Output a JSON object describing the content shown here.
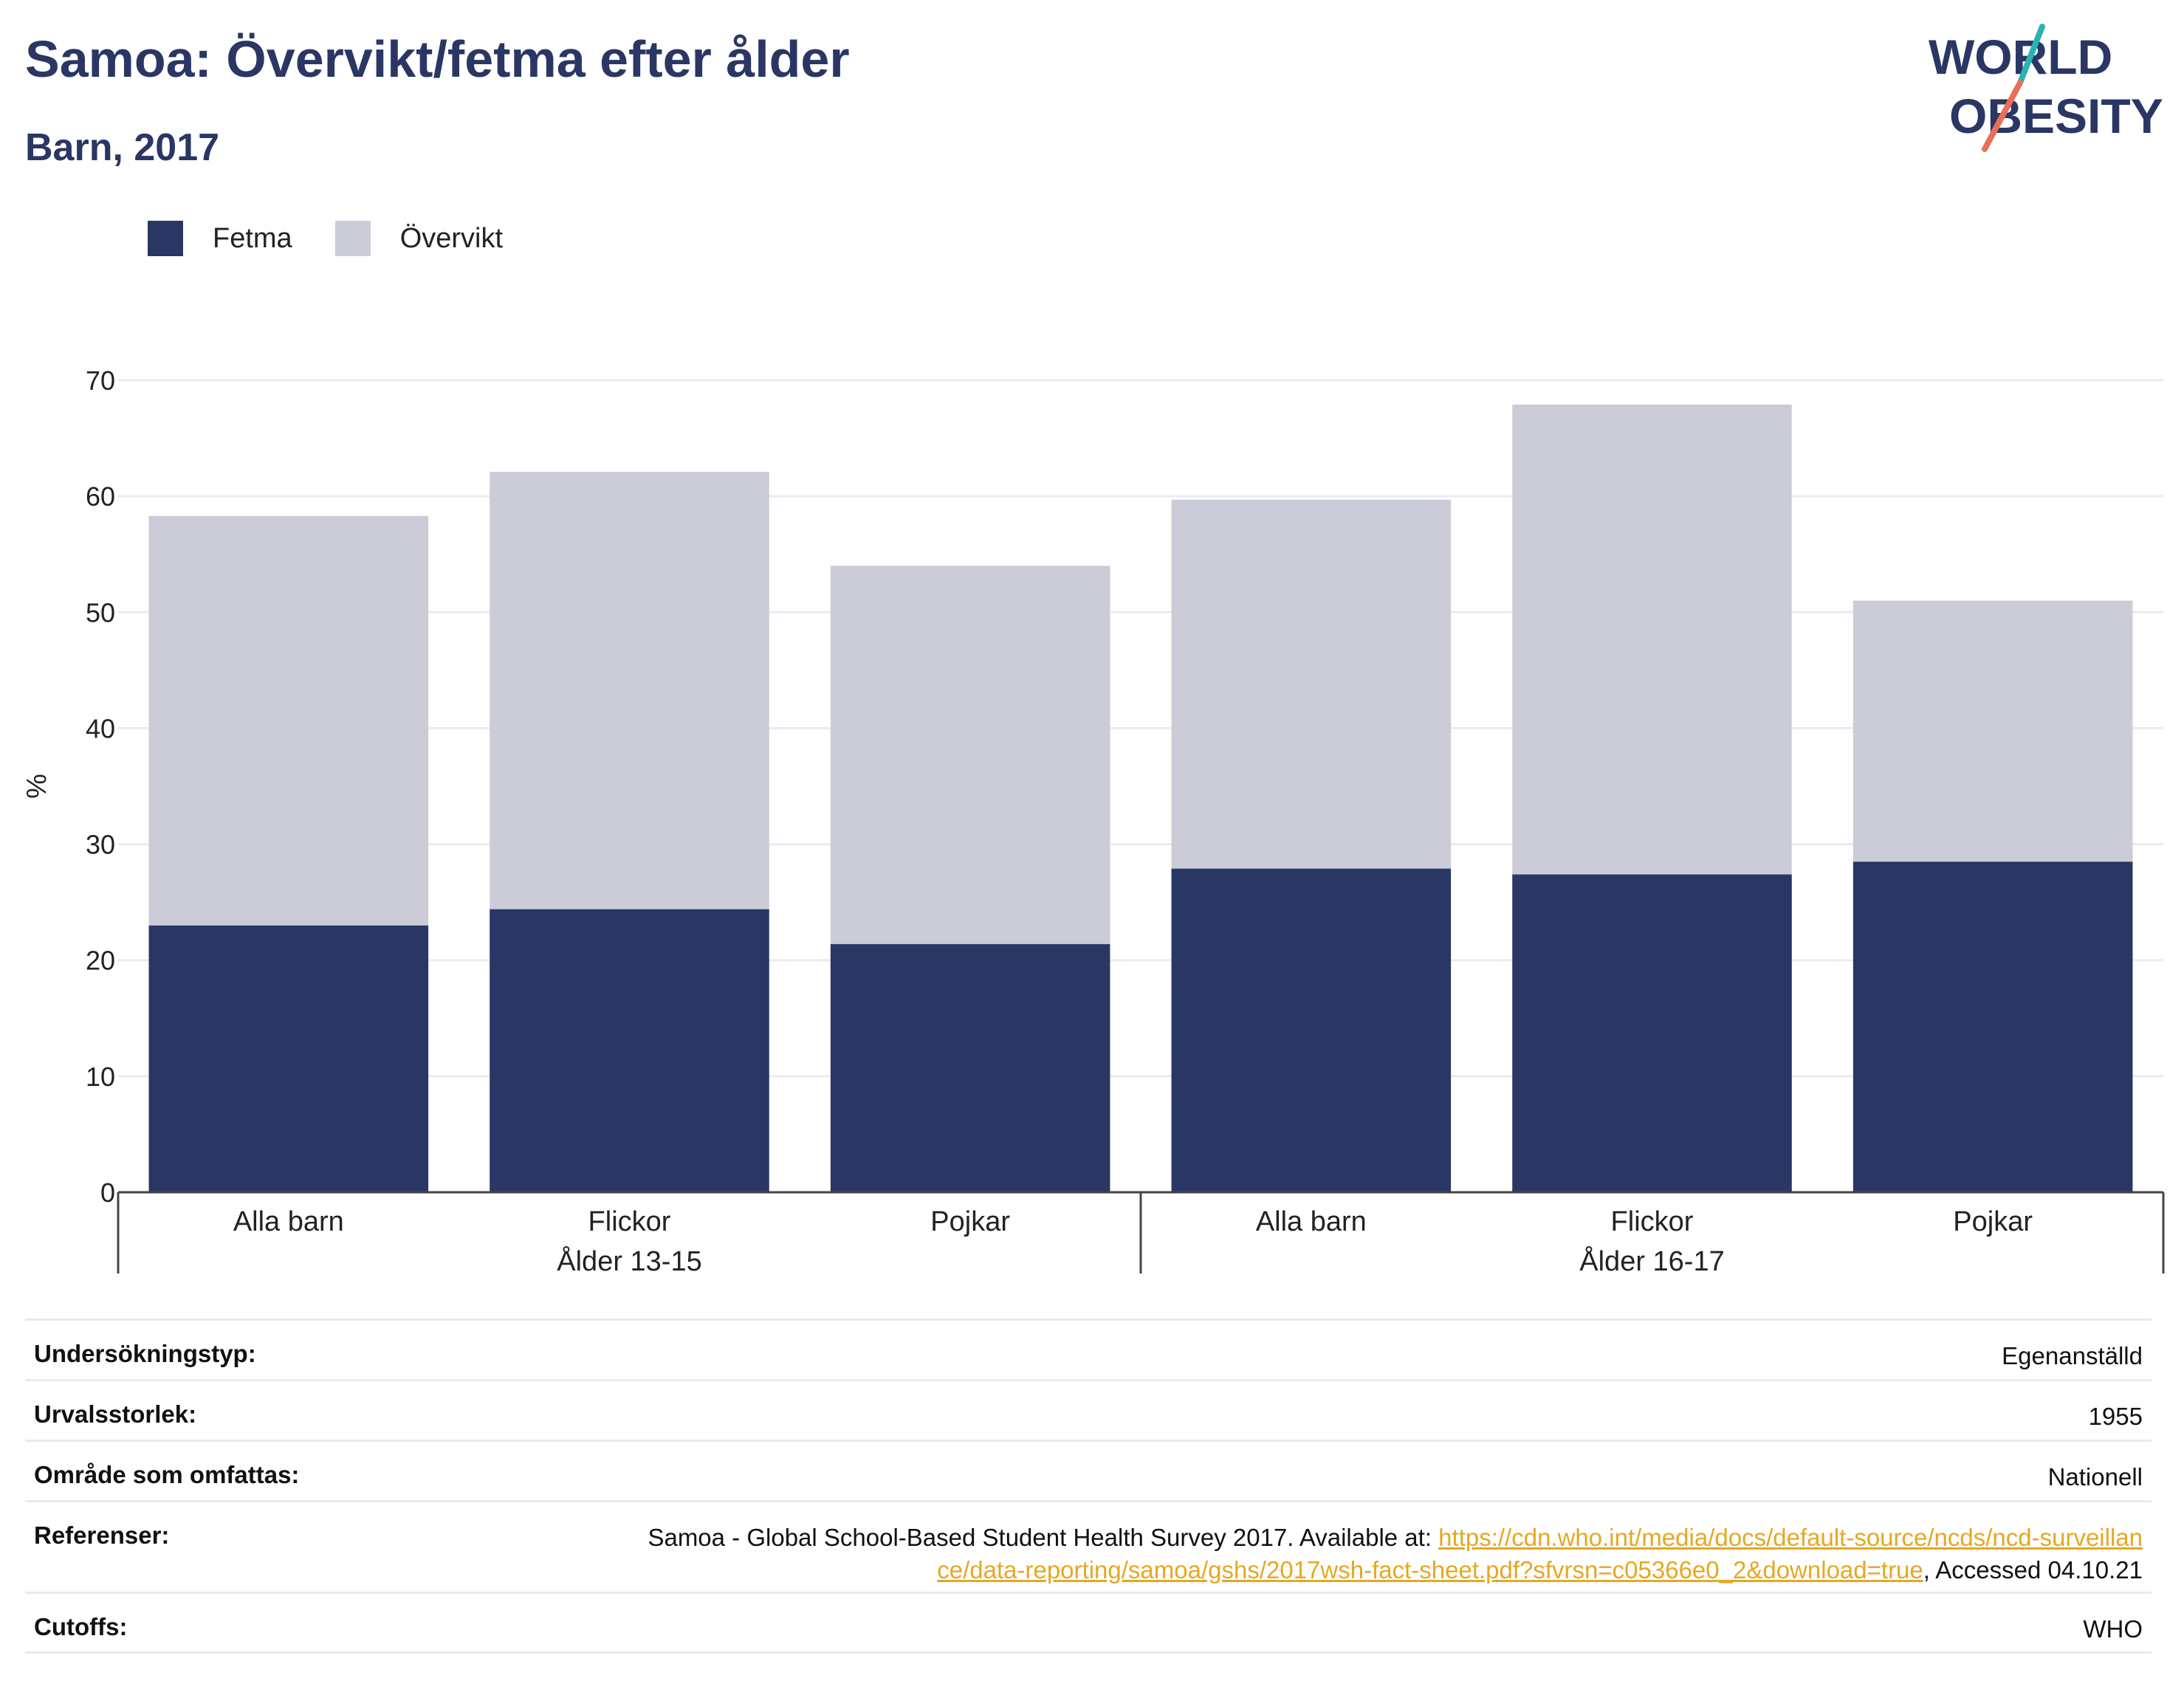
{
  "header": {
    "title": "Samoa: Övervikt/fetma efter ålder",
    "subtitle": "Barn, 2017",
    "logo_line1": "WORLD",
    "logo_line2": "OBESITY"
  },
  "legend": {
    "items": [
      {
        "label": "Fetma",
        "color": "#2a3663"
      },
      {
        "label": "Övervikt",
        "color": "#cbccd8"
      }
    ]
  },
  "chart_data": {
    "type": "bar",
    "stacked": true,
    "categories": [
      "Alla barn",
      "Flickor",
      "Pojkar",
      "Alla barn",
      "Flickor",
      "Pojkar"
    ],
    "groups": [
      {
        "label": "Ålder 13-15",
        "categories": [
          "Alla barn",
          "Flickor",
          "Pojkar"
        ]
      },
      {
        "label": "Ålder 16-17",
        "categories": [
          "Alla barn",
          "Flickor",
          "Pojkar"
        ]
      }
    ],
    "series": [
      {
        "name": "Fetma",
        "color": "#2a3663",
        "values": [
          23.0,
          24.4,
          21.4,
          27.9,
          27.4,
          28.5
        ]
      },
      {
        "name": "Övervikt",
        "color": "#cbccd8",
        "values": [
          35.3,
          37.7,
          32.6,
          31.8,
          40.5,
          22.5
        ]
      }
    ],
    "ylabel": "%",
    "ylim": [
      0,
      70
    ],
    "yticks": [
      0,
      10,
      20,
      30,
      40,
      50,
      60,
      70
    ],
    "grid": true,
    "legend_position": "top-left"
  },
  "info": {
    "survey_type": {
      "label": "Undersökningstyp:",
      "value": "Egenanställd"
    },
    "sample_size": {
      "label": "Urvalsstorlek:",
      "value": "1955"
    },
    "coverage": {
      "label": "Område som omfattas:",
      "value": "Nationell"
    },
    "references": {
      "label": "Referenser:",
      "text_before": "Samoa - Global School-Based Student Health Survey 2017. Available at: ",
      "link": "https://cdn.who.int/media/docs/default-source/ncds/ncd-surveillance/data-reporting/samoa/gshs/2017wsh-fact-sheet.pdf?sfvrsn=c05366e0_2&download=true",
      "text_after": ", Accessed 04.10.21"
    },
    "cutoffs": {
      "label": "Cutoffs:",
      "value": "WHO"
    }
  }
}
